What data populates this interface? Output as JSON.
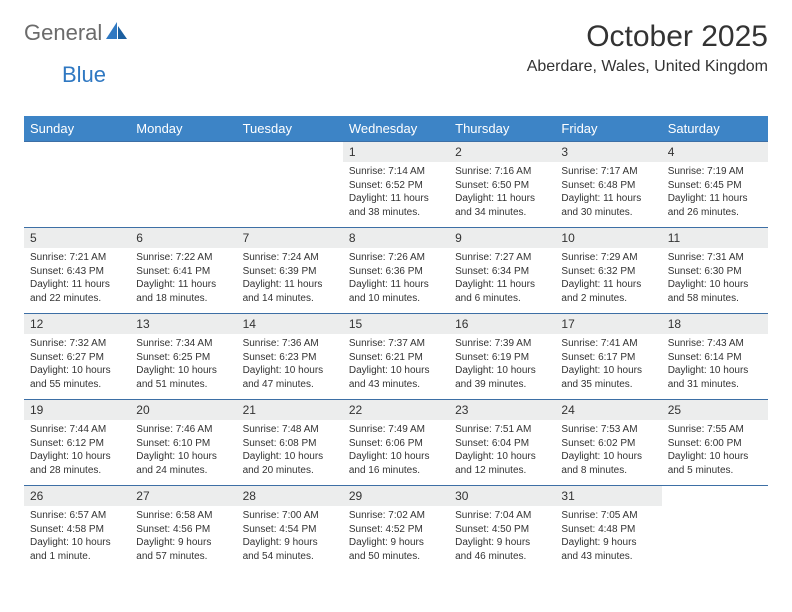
{
  "logo": {
    "part1": "General",
    "part2": "Blue"
  },
  "title": "October 2025",
  "subtitle": "Aberdare, Wales, United Kingdom",
  "colors": {
    "header_bg": "#3d84c6",
    "header_text": "#ffffff",
    "daynum_bg": "#eceded",
    "border": "#3d6fa5",
    "logo_gray": "#6b6b6b",
    "logo_blue": "#2f78c2"
  },
  "columns": [
    "Sunday",
    "Monday",
    "Tuesday",
    "Wednesday",
    "Thursday",
    "Friday",
    "Saturday"
  ],
  "weeks": [
    [
      {
        "num": "",
        "lines": []
      },
      {
        "num": "",
        "lines": []
      },
      {
        "num": "",
        "lines": []
      },
      {
        "num": "1",
        "lines": [
          "Sunrise: 7:14 AM",
          "Sunset: 6:52 PM",
          "Daylight: 11 hours",
          "and 38 minutes."
        ]
      },
      {
        "num": "2",
        "lines": [
          "Sunrise: 7:16 AM",
          "Sunset: 6:50 PM",
          "Daylight: 11 hours",
          "and 34 minutes."
        ]
      },
      {
        "num": "3",
        "lines": [
          "Sunrise: 7:17 AM",
          "Sunset: 6:48 PM",
          "Daylight: 11 hours",
          "and 30 minutes."
        ]
      },
      {
        "num": "4",
        "lines": [
          "Sunrise: 7:19 AM",
          "Sunset: 6:45 PM",
          "Daylight: 11 hours",
          "and 26 minutes."
        ]
      }
    ],
    [
      {
        "num": "5",
        "lines": [
          "Sunrise: 7:21 AM",
          "Sunset: 6:43 PM",
          "Daylight: 11 hours",
          "and 22 minutes."
        ]
      },
      {
        "num": "6",
        "lines": [
          "Sunrise: 7:22 AM",
          "Sunset: 6:41 PM",
          "Daylight: 11 hours",
          "and 18 minutes."
        ]
      },
      {
        "num": "7",
        "lines": [
          "Sunrise: 7:24 AM",
          "Sunset: 6:39 PM",
          "Daylight: 11 hours",
          "and 14 minutes."
        ]
      },
      {
        "num": "8",
        "lines": [
          "Sunrise: 7:26 AM",
          "Sunset: 6:36 PM",
          "Daylight: 11 hours",
          "and 10 minutes."
        ]
      },
      {
        "num": "9",
        "lines": [
          "Sunrise: 7:27 AM",
          "Sunset: 6:34 PM",
          "Daylight: 11 hours",
          "and 6 minutes."
        ]
      },
      {
        "num": "10",
        "lines": [
          "Sunrise: 7:29 AM",
          "Sunset: 6:32 PM",
          "Daylight: 11 hours",
          "and 2 minutes."
        ]
      },
      {
        "num": "11",
        "lines": [
          "Sunrise: 7:31 AM",
          "Sunset: 6:30 PM",
          "Daylight: 10 hours",
          "and 58 minutes."
        ]
      }
    ],
    [
      {
        "num": "12",
        "lines": [
          "Sunrise: 7:32 AM",
          "Sunset: 6:27 PM",
          "Daylight: 10 hours",
          "and 55 minutes."
        ]
      },
      {
        "num": "13",
        "lines": [
          "Sunrise: 7:34 AM",
          "Sunset: 6:25 PM",
          "Daylight: 10 hours",
          "and 51 minutes."
        ]
      },
      {
        "num": "14",
        "lines": [
          "Sunrise: 7:36 AM",
          "Sunset: 6:23 PM",
          "Daylight: 10 hours",
          "and 47 minutes."
        ]
      },
      {
        "num": "15",
        "lines": [
          "Sunrise: 7:37 AM",
          "Sunset: 6:21 PM",
          "Daylight: 10 hours",
          "and 43 minutes."
        ]
      },
      {
        "num": "16",
        "lines": [
          "Sunrise: 7:39 AM",
          "Sunset: 6:19 PM",
          "Daylight: 10 hours",
          "and 39 minutes."
        ]
      },
      {
        "num": "17",
        "lines": [
          "Sunrise: 7:41 AM",
          "Sunset: 6:17 PM",
          "Daylight: 10 hours",
          "and 35 minutes."
        ]
      },
      {
        "num": "18",
        "lines": [
          "Sunrise: 7:43 AM",
          "Sunset: 6:14 PM",
          "Daylight: 10 hours",
          "and 31 minutes."
        ]
      }
    ],
    [
      {
        "num": "19",
        "lines": [
          "Sunrise: 7:44 AM",
          "Sunset: 6:12 PM",
          "Daylight: 10 hours",
          "and 28 minutes."
        ]
      },
      {
        "num": "20",
        "lines": [
          "Sunrise: 7:46 AM",
          "Sunset: 6:10 PM",
          "Daylight: 10 hours",
          "and 24 minutes."
        ]
      },
      {
        "num": "21",
        "lines": [
          "Sunrise: 7:48 AM",
          "Sunset: 6:08 PM",
          "Daylight: 10 hours",
          "and 20 minutes."
        ]
      },
      {
        "num": "22",
        "lines": [
          "Sunrise: 7:49 AM",
          "Sunset: 6:06 PM",
          "Daylight: 10 hours",
          "and 16 minutes."
        ]
      },
      {
        "num": "23",
        "lines": [
          "Sunrise: 7:51 AM",
          "Sunset: 6:04 PM",
          "Daylight: 10 hours",
          "and 12 minutes."
        ]
      },
      {
        "num": "24",
        "lines": [
          "Sunrise: 7:53 AM",
          "Sunset: 6:02 PM",
          "Daylight: 10 hours",
          "and 8 minutes."
        ]
      },
      {
        "num": "25",
        "lines": [
          "Sunrise: 7:55 AM",
          "Sunset: 6:00 PM",
          "Daylight: 10 hours",
          "and 5 minutes."
        ]
      }
    ],
    [
      {
        "num": "26",
        "lines": [
          "Sunrise: 6:57 AM",
          "Sunset: 4:58 PM",
          "Daylight: 10 hours",
          "and 1 minute."
        ]
      },
      {
        "num": "27",
        "lines": [
          "Sunrise: 6:58 AM",
          "Sunset: 4:56 PM",
          "Daylight: 9 hours",
          "and 57 minutes."
        ]
      },
      {
        "num": "28",
        "lines": [
          "Sunrise: 7:00 AM",
          "Sunset: 4:54 PM",
          "Daylight: 9 hours",
          "and 54 minutes."
        ]
      },
      {
        "num": "29",
        "lines": [
          "Sunrise: 7:02 AM",
          "Sunset: 4:52 PM",
          "Daylight: 9 hours",
          "and 50 minutes."
        ]
      },
      {
        "num": "30",
        "lines": [
          "Sunrise: 7:04 AM",
          "Sunset: 4:50 PM",
          "Daylight: 9 hours",
          "and 46 minutes."
        ]
      },
      {
        "num": "31",
        "lines": [
          "Sunrise: 7:05 AM",
          "Sunset: 4:48 PM",
          "Daylight: 9 hours",
          "and 43 minutes."
        ]
      },
      {
        "num": "",
        "lines": []
      }
    ]
  ]
}
